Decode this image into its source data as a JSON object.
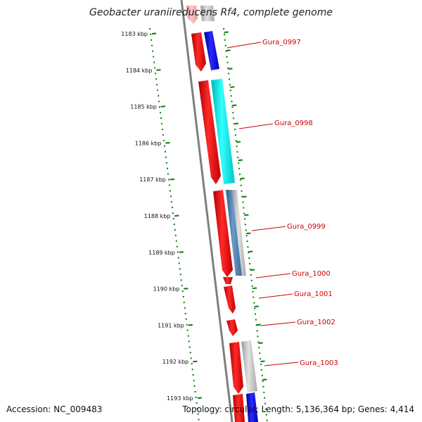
{
  "title": "Geobacter uraniireducens Rf4, complete genome",
  "accession": "Accession: NC_009483",
  "summary": "Topology: circular; Length: 5,136,364 bp; Genes: 4,414",
  "colors": {
    "backbone": "#7f7f7f",
    "tick": "#0a7a0a",
    "label": "#cc0000",
    "cds_red": "#ff0000",
    "cds_blue": "#0000ff",
    "cds_cyan": "#00e5e5",
    "cds_steel": "#4f7fb0",
    "cds_gray": "#bdbdbd",
    "cds_pink": "#f4aaaa"
  },
  "ruler": {
    "unit": "kbp",
    "ticks": [
      "1183 kbp",
      "1184 kbp",
      "1185 kbp",
      "1186 kbp",
      "1187 kbp",
      "1188 kbp",
      "1189 kbp",
      "1190 kbp",
      "1191 kbp",
      "1192 kbp",
      "1193 kbp"
    ]
  },
  "genes": [
    {
      "label": "Gura_0997"
    },
    {
      "label": "Gura_0998"
    },
    {
      "label": "Gura_0999"
    },
    {
      "label": "Gura_1000"
    },
    {
      "label": "Gura_1001"
    },
    {
      "label": "Gura_1002"
    },
    {
      "label": "Gura_1003"
    }
  ]
}
